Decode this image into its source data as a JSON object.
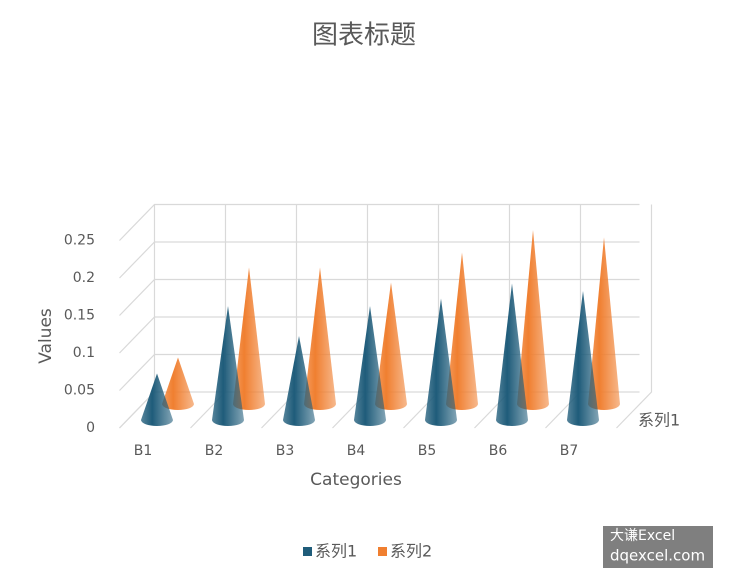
{
  "chart_data": {
    "type": "cone3d",
    "title": "图表标题",
    "x_label": "Categories",
    "y_label": "Values",
    "depth_categories": [
      "系列1"
    ],
    "categories": [
      "B1",
      "B2",
      "B3",
      "B4",
      "B5",
      "B6",
      "B7"
    ],
    "series": [
      {
        "name": "系列1",
        "color": "#1f5c7a",
        "values": [
          0.07,
          0.16,
          0.12,
          0.16,
          0.17,
          0.19,
          0.18
        ]
      },
      {
        "name": "系列2",
        "color": "#f07f30",
        "values": [
          0.07,
          0.19,
          0.19,
          0.17,
          0.21,
          0.24,
          0.23
        ]
      }
    ],
    "ylim": [
      0,
      0.25
    ],
    "yticks": [
      0,
      0.05,
      0.1,
      0.15,
      0.2,
      0.25
    ],
    "grid": true,
    "legend": "bottom"
  },
  "watermark": [
    "大谦Excel",
    "dqexcel.com"
  ]
}
